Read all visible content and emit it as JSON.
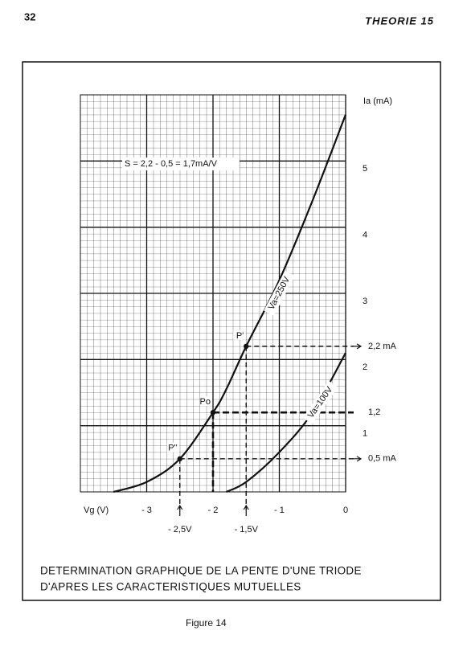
{
  "page_number": "32",
  "running_head": "THEORIE 15",
  "caption": [
    "DETERMINATION GRAPHIQUE DE LA PENTE D'UNE TRIODE",
    "D'APRES LES CARACTERISTIQUES MUTUELLES"
  ],
  "figure_label": "Figure 14",
  "chart_data": {
    "type": "line",
    "x_label": "Vg (V)",
    "y_label": "Ia (mA)",
    "annotation": "S = 2,2 - 0,5 = 1,7mA/V",
    "x": [
      -3.5,
      -3,
      -2.5,
      -2,
      -1.8,
      -1.5,
      -1,
      -0.5,
      0
    ],
    "series": [
      {
        "name": "Va=250V",
        "color": "#111111",
        "values": [
          0,
          0.15,
          0.5,
          1.2,
          1.55,
          2.2,
          3.2,
          4.4,
          5.7
        ]
      },
      {
        "name": "Va=100V",
        "color": "#111111",
        "values": [
          null,
          null,
          null,
          null,
          0,
          0.15,
          0.6,
          1.2,
          2.1
        ]
      }
    ],
    "xlim": [
      -4,
      0
    ],
    "ylim": [
      0,
      6
    ],
    "xticks": [
      {
        "value": -3,
        "label": "- 3"
      },
      {
        "value": -2,
        "label": "- 2"
      },
      {
        "value": -1,
        "label": "- 1"
      },
      0
    ],
    "yticks": [
      1,
      2,
      3,
      4,
      5
    ],
    "grid": true,
    "points": [
      {
        "label": "P''",
        "x": -2.5,
        "y": 0.5
      },
      {
        "label": "Po",
        "x": -2,
        "y": 1.2
      },
      {
        "label": "P'",
        "x": -1.5,
        "y": 2.2
      }
    ],
    "y_markers": [
      {
        "value": 2.2,
        "label": "2,2 mA"
      },
      {
        "value": 1.2,
        "label": "1,2"
      },
      {
        "value": 0.5,
        "label": "0,5 mA"
      }
    ],
    "x_markers": [
      {
        "value": -2.5,
        "label": "- 2,5V"
      },
      {
        "value": -1.5,
        "label": "- 1,5V"
      }
    ]
  }
}
